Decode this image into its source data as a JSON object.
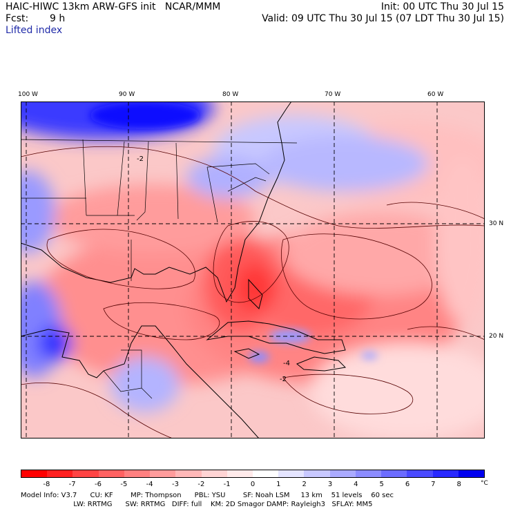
{
  "header": {
    "title": "HAIC-HIWC 13km ARW-GFS init   NCAR/MMM",
    "init": "Init: 00 UTC Thu 30 Jul 15",
    "fcst_label": "Fcst:",
    "fcst_value": "9 h",
    "valid": "Valid: 09 UTC Thu 30 Jul 15 (07 LDT Thu 30 Jul 15)",
    "field": "Lifted index"
  },
  "map": {
    "lon_labels": [
      "100 W",
      "90 W",
      "80 W",
      "70 W",
      "60 W"
    ],
    "lat_labels": [
      "30 N",
      "20 N"
    ],
    "contour_labels": [
      "-2",
      "-4",
      "-2"
    ]
  },
  "colorbar": {
    "ticks": [
      "-8",
      "-7",
      "-6",
      "-5",
      "-4",
      "-3",
      "-2",
      "-1",
      "0",
      "1",
      "2",
      "3",
      "4",
      "5",
      "6",
      "7",
      "8"
    ],
    "unit": "°C",
    "colors": [
      "#ff0000",
      "#ff2020",
      "#ff4444",
      "#ff6262",
      "#ff8080",
      "#ff9c9c",
      "#ffb8b8",
      "#ffd4d4",
      "#ffeaea",
      "#ffffff",
      "#e4e4ff",
      "#c8c8ff",
      "#aaaaff",
      "#8c8cff",
      "#6c6cff",
      "#4a4aff",
      "#2828ff",
      "#0000f0"
    ]
  },
  "footer": {
    "line1": "Model Info: V3.7      CU: KF        MP: Thompson      PBL: YSU        SF: Noah LSM     13 km    51 levels    60 sec",
    "line2": "                        LW: RRTMG      SW: RRTMG   DIFF: full    KM: 2D Smagor DAMP: Rayleigh3   SFLAY: MM5"
  }
}
